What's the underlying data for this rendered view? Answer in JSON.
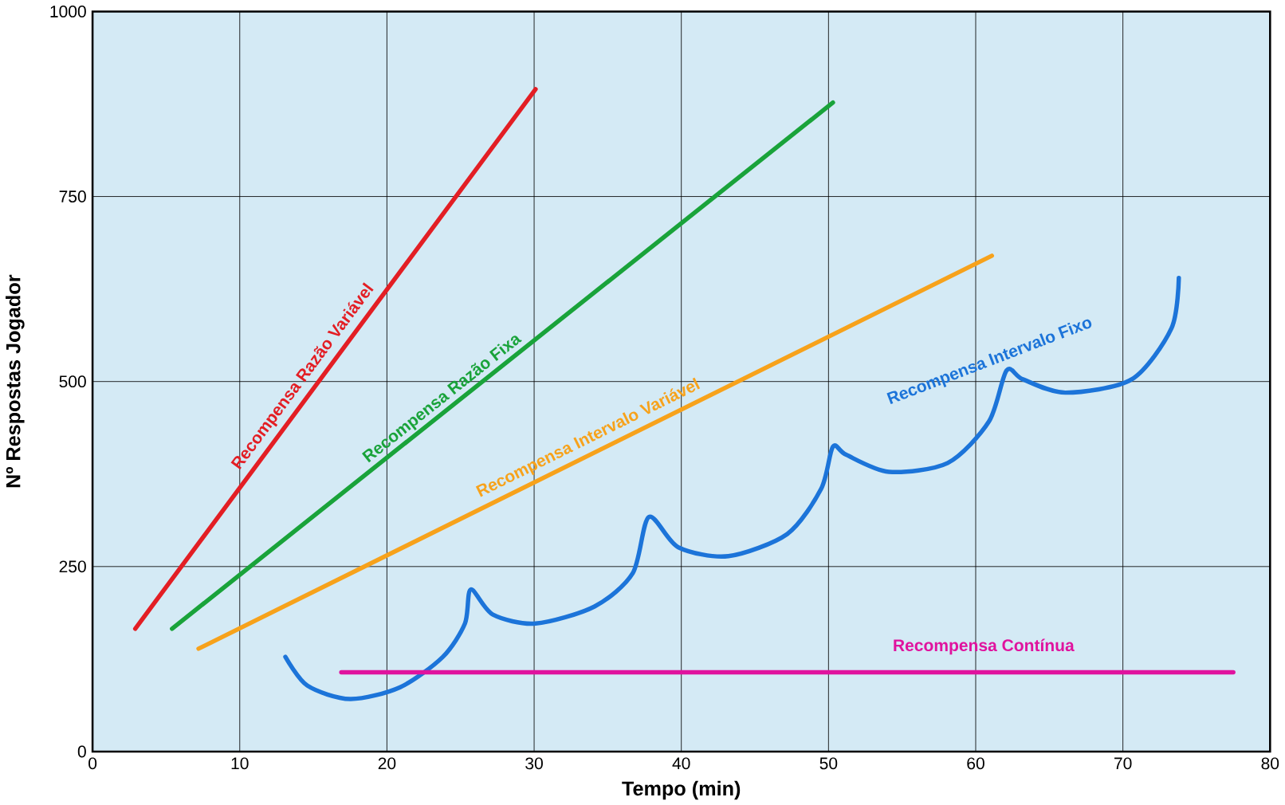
{
  "chart_data": {
    "type": "line",
    "xlabel": "Tempo (min)",
    "ylabel": "Nº Respostas Jogador",
    "xlim": [
      0,
      80
    ],
    "ylim": [
      0,
      1000
    ],
    "xticks": [
      0,
      10,
      20,
      30,
      40,
      50,
      60,
      70,
      80
    ],
    "yticks": [
      0,
      250,
      500,
      750,
      1000
    ],
    "grid": true,
    "legend": false,
    "marker": "none",
    "line_style": "solid",
    "series": [
      {
        "name": "Recompensa Razão Variável",
        "color": "#e31e24",
        "x": [
          2.9,
          30.1
        ],
        "values": [
          166,
          895
        ]
      },
      {
        "name": "Recompensa Razão Fixa",
        "color": "#19a33a",
        "x": [
          5.4,
          50.3
        ],
        "values": [
          166,
          877
        ]
      },
      {
        "name": "Recompensa Intervalo Variável",
        "color": "#f7a21b",
        "x": [
          7.2,
          61.1
        ],
        "values": [
          139,
          670
        ]
      },
      {
        "name": "Recompensa Intervalo Fixo",
        "color": "#1c74d9",
        "x": [
          13.1,
          14.6,
          17.5,
          20.9,
          23.8,
          25.3,
          25.7,
          27.2,
          30.1,
          34.1,
          36.7,
          37.8,
          39.8,
          43.2,
          47.2,
          49.5,
          50.3,
          51.2,
          54.1,
          58.1,
          60.9,
          62.1,
          63.2,
          66.1,
          70.6,
          73.3,
          73.8
        ],
        "values": [
          128,
          89,
          71,
          87,
          128,
          173,
          219,
          185,
          173,
          196,
          241,
          317,
          276,
          264,
          294,
          355,
          412,
          401,
          378,
          390,
          446,
          515,
          503,
          485,
          503,
          572,
          640
        ]
      },
      {
        "name": "Recompensa Contínua",
        "color": "#e0139e",
        "x": [
          16.9,
          77.5
        ],
        "values": [
          107,
          107
        ]
      }
    ]
  }
}
